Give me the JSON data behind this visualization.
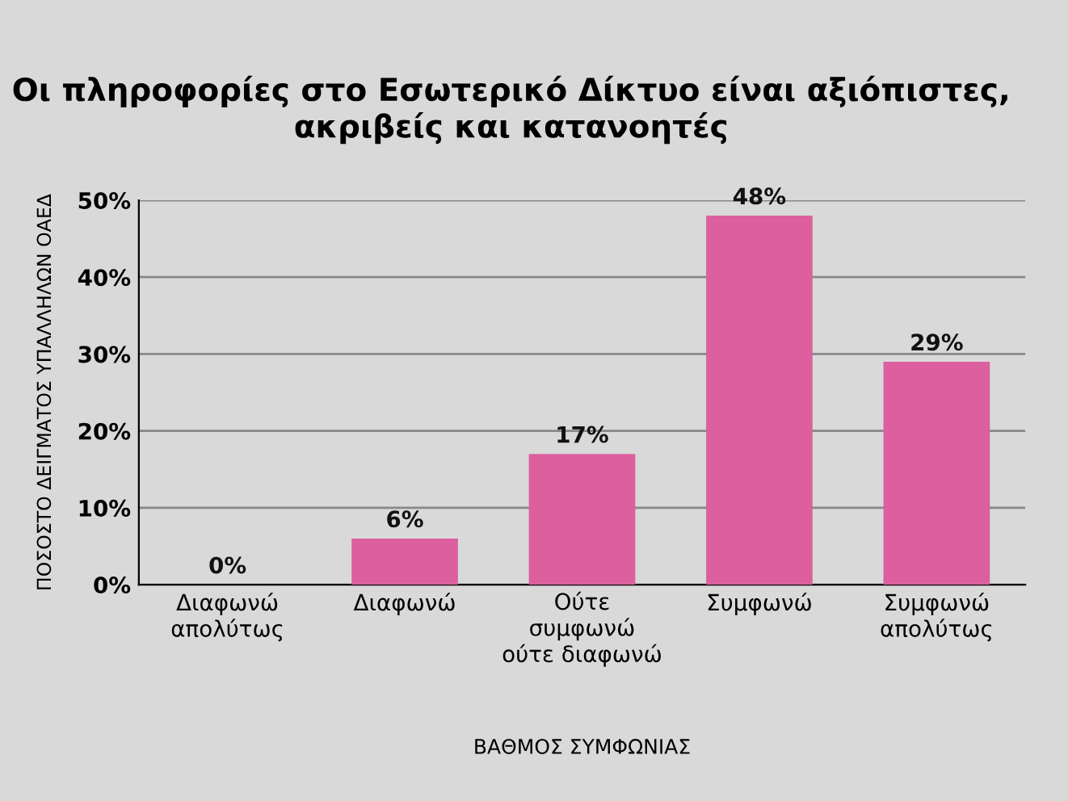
{
  "chart_data": {
    "type": "bar",
    "title": "Οι πληροφορίες στο Εσωτερικό Δίκτυο είναι αξιόπιστες,\nακριβείς και κατανοητές",
    "xlabel": "ΒΑΘΜΟΣ ΣΥΜΦΩΝΙΑΣ",
    "ylabel": "ΠΟΣΟΣΤΟ ΔΕΙΓΜΑΤΟΣ ΥΠΑΛΛΗΛΩΝ ΟΑΕΔ",
    "categories": [
      "Διαφωνώ\nαπολύτως",
      "Διαφωνώ",
      "Ούτε\nσυμφωνώ\nούτε διαφωνώ",
      "Συμφωνώ",
      "Συμφωνώ\nαπολύτως"
    ],
    "values": [
      0,
      6,
      17,
      48,
      29
    ],
    "value_labels": [
      "0%",
      "6%",
      "17%",
      "48%",
      "29%"
    ],
    "color": "#dc5f9e",
    "ylim": [
      0,
      50
    ],
    "yticks": [
      {
        "value": 0,
        "label": "0%"
      },
      {
        "value": 10,
        "label": "10%"
      },
      {
        "value": 20,
        "label": "20%"
      },
      {
        "value": 30,
        "label": "30%"
      },
      {
        "value": 40,
        "label": "40%"
      },
      {
        "value": 50,
        "label": "50%"
      }
    ],
    "grid": "y"
  }
}
